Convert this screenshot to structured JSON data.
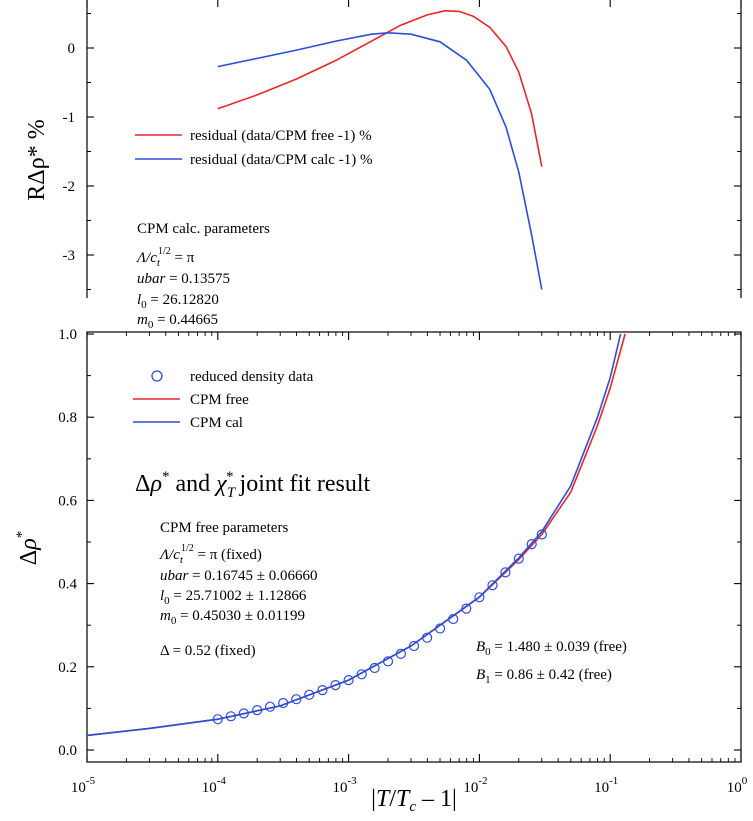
{
  "colors": {
    "free": "#e8262b",
    "calc": "#2a4fd6",
    "data": "#2a4fd6",
    "axis": "#000000"
  },
  "chart_data": [
    {
      "type": "line",
      "panel": "residuals",
      "ylabel": "RΔρ* %",
      "xscale": "log",
      "xlim": [
        1e-05,
        1
      ],
      "ylim": [
        -3.6,
        0.6
      ],
      "yticks": [
        0,
        -1,
        -2,
        -3
      ],
      "ytick_labels": [
        "0",
        "-1",
        "-2",
        "-3"
      ],
      "legend": "upper-left",
      "series": [
        {
          "name": "residual (data/CPM free -1) %",
          "color": "red",
          "x": [
            0.0001,
            0.0002,
            0.0004,
            0.0008,
            0.0015,
            0.0025,
            0.004,
            0.0055,
            0.007,
            0.009,
            0.012,
            0.016,
            0.02,
            0.025,
            0.03
          ],
          "y": [
            -0.88,
            -0.68,
            -0.45,
            -0.18,
            0.1,
            0.33,
            0.48,
            0.54,
            0.53,
            0.46,
            0.3,
            0.02,
            -0.35,
            -0.95,
            -1.72
          ]
        },
        {
          "name": "residual (data/CPM calc -1) %",
          "color": "blue",
          "x": [
            0.0001,
            0.0002,
            0.0004,
            0.0008,
            0.0015,
            0.002,
            0.003,
            0.005,
            0.008,
            0.012,
            0.016,
            0.02,
            0.025,
            0.03
          ],
          "y": [
            -0.27,
            -0.15,
            -0.03,
            0.1,
            0.2,
            0.22,
            0.2,
            0.09,
            -0.18,
            -0.6,
            -1.15,
            -1.8,
            -2.7,
            -3.5
          ]
        }
      ],
      "annotations": {
        "heading": "CPM  calc. parameters",
        "lines": [
          "Λ/c",
          "ubar =  0.13575",
          "l0 = 26.12820",
          "m0 = 0.44665"
        ],
        "lambda_value": " = π",
        "ubar_name": "ubar",
        "ubar_value": " =  0.13575",
        "l0_value": " = 26.12820",
        "m0_value": " = 0.44665"
      }
    },
    {
      "type": "line",
      "panel": "reduced-density",
      "title": "Δρ* and χT* joint fit result",
      "xlabel": "|T/Tc − 1|",
      "ylabel": "Δρ*",
      "xscale": "log",
      "xlim": [
        1e-05,
        1
      ],
      "ylim": [
        -0.02,
        1.0
      ],
      "yticks": [
        0.0,
        0.2,
        0.4,
        0.6,
        0.8,
        1.0
      ],
      "ytick_labels": [
        "0.0",
        "0.2",
        "0.4",
        "0.6",
        "0.8",
        "1.0"
      ],
      "xticks": [
        1e-05,
        0.0001,
        0.001,
        0.01,
        0.1,
        1
      ],
      "xtick_labels": [
        "10-5",
        "10-4",
        "10-3",
        "10-2",
        "10-1",
        "100"
      ],
      "legend": "upper-left",
      "series": [
        {
          "name": "reduced density data",
          "style": "circles",
          "color": "blue",
          "x": [
            0.0001,
            0.000126,
            0.000158,
            0.0002,
            0.000251,
            0.000316,
            0.000398,
            0.000501,
            0.000631,
            0.000794,
            0.001,
            0.00126,
            0.00158,
            0.002,
            0.00251,
            0.00316,
            0.00398,
            0.00501,
            0.00631,
            0.00794,
            0.01,
            0.0126,
            0.0158,
            0.02,
            0.0251,
            0.03
          ],
          "y": [
            0.074,
            0.081,
            0.088,
            0.096,
            0.104,
            0.113,
            0.122,
            0.133,
            0.144,
            0.156,
            0.168,
            0.182,
            0.197,
            0.213,
            0.231,
            0.25,
            0.27,
            0.292,
            0.315,
            0.34,
            0.367,
            0.396,
            0.427,
            0.46,
            0.495,
            0.518
          ]
        },
        {
          "name": "CPM free",
          "color": "red",
          "x": [
            1e-05,
            3e-05,
            0.0001,
            0.0003,
            0.001,
            0.003,
            0.01,
            0.02,
            0.03,
            0.05,
            0.08,
            0.1,
            0.13
          ],
          "y": [
            0.035,
            0.052,
            0.074,
            0.106,
            0.168,
            0.25,
            0.367,
            0.458,
            0.518,
            0.62,
            0.78,
            0.87,
            1.0
          ]
        },
        {
          "name": "CPM cal",
          "color": "blue",
          "x": [
            1e-05,
            3e-05,
            0.0001,
            0.0003,
            0.001,
            0.003,
            0.01,
            0.02,
            0.03,
            0.05,
            0.08,
            0.1,
            0.12
          ],
          "y": [
            0.035,
            0.052,
            0.074,
            0.106,
            0.168,
            0.25,
            0.368,
            0.462,
            0.525,
            0.635,
            0.8,
            0.895,
            1.0
          ]
        }
      ],
      "annotations": {
        "heading": "CPM free parameters",
        "lambda_value": " = π (fixed)",
        "ubar_name": "ubar",
        "ubar_value": " =  0.16745 ± 0.06660",
        "l0_value": " = 25.71002 ± 1.12866",
        "m0_value": " = 0.45030 ± 0.01199",
        "delta": "Δ = 0.52  (fixed)",
        "b0_value": " = 1.480 ± 0.039 (free)",
        "b1_value": " = 0.86 ± 0.42 (free)"
      }
    }
  ]
}
